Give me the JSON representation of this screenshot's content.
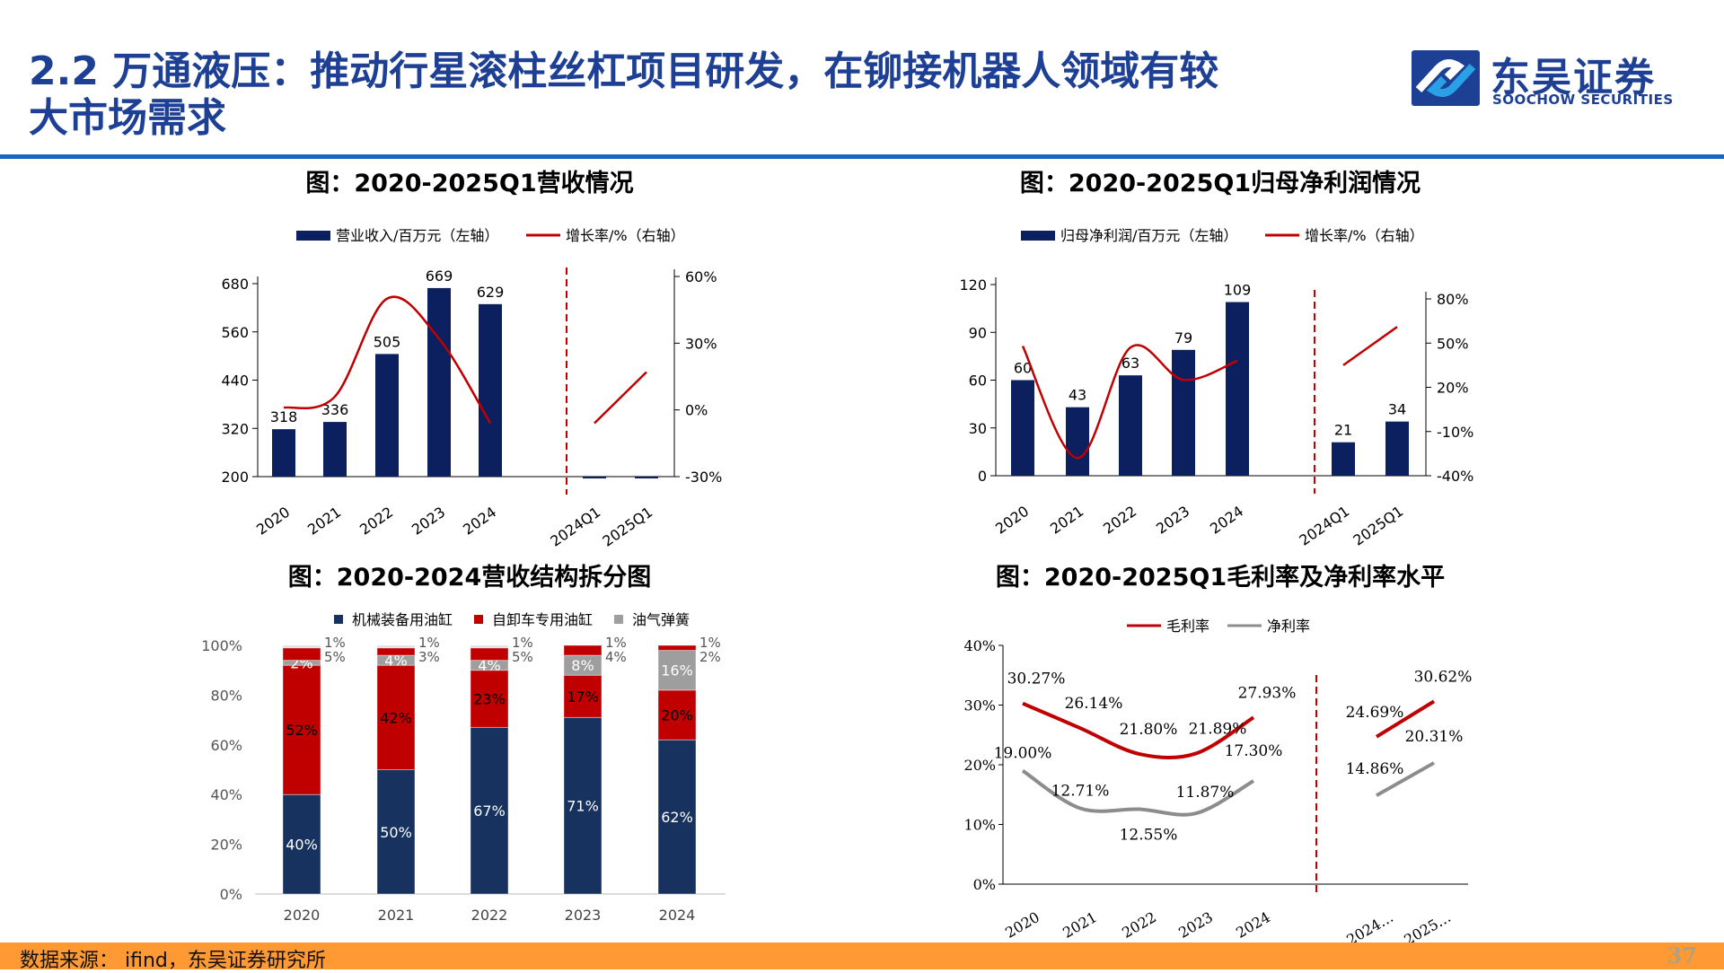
{
  "header": {
    "title_line1": "2.2 万通液压：推动行星滚柱丝杠项目研发，在铆接机器人领域有较",
    "title_line2": "大市场需求",
    "logo_cn": "东吴证券",
    "logo_en": "SOOCHOW SECURITIES",
    "brand_color": "#1d3f94",
    "rule_color": "#1a66c2"
  },
  "footer": {
    "source": "数据来源： ifind，东吴证券研究所",
    "page": "37",
    "color": "#ff9933"
  },
  "chart_data": [
    {
      "type": "bar+line",
      "title": "图：2020-2025Q1营收情况",
      "categories": [
        "2020",
        "2021",
        "2022",
        "2023",
        "2024",
        "2024Q1",
        "2025Q1"
      ],
      "series": [
        {
          "name": "营业收入/百万元（左轴）",
          "type": "bar",
          "color": "#0c1f5e",
          "values": [
            318,
            336,
            505,
            669,
            629,
            null,
            null
          ],
          "labels": [
            "318",
            "336",
            "505",
            "669",
            "629",
            "",
            ""
          ]
        },
        {
          "name": "增长率/%（右轴）",
          "type": "line",
          "color": "#c00000",
          "values": [
            1,
            6,
            50,
            32,
            -6,
            -6,
            17
          ]
        }
      ],
      "ylim_left": [
        200,
        680
      ],
      "yticks_left": [
        200,
        320,
        440,
        560,
        680
      ],
      "ylim_right": [
        -30,
        60
      ],
      "yticks_right": [
        "-30%",
        "0%",
        "30%",
        "60%"
      ],
      "divider_after": "2024"
    },
    {
      "type": "bar+line",
      "title": "图：2020-2025Q1归母净利润情况",
      "categories": [
        "2020",
        "2021",
        "2022",
        "2023",
        "2024",
        "2024Q1",
        "2025Q1"
      ],
      "series": [
        {
          "name": "归母净利润/百万元（左轴）",
          "type": "bar",
          "color": "#0c1f5e",
          "values": [
            60,
            43,
            63,
            79,
            109,
            21,
            34
          ],
          "labels": [
            "60",
            "43",
            "63",
            "79",
            "109",
            "21",
            "34"
          ]
        },
        {
          "name": "增长率/%（右轴）",
          "type": "line",
          "color": "#c00000",
          "values": [
            48,
            -28,
            47,
            25,
            38,
            35,
            61
          ]
        }
      ],
      "ylim_left": [
        0,
        120
      ],
      "yticks_left": [
        0,
        30,
        60,
        90,
        120
      ],
      "ylim_right": [
        -40,
        80
      ],
      "yticks_right": [
        "-40%",
        "-10%",
        "20%",
        "50%",
        "80%"
      ],
      "divider_after": "2024"
    },
    {
      "type": "stacked_bar",
      "title": "图：2020-2024营收结构拆分图",
      "categories": [
        "2020",
        "2021",
        "2022",
        "2023",
        "2024"
      ],
      "series": [
        {
          "name": "机械装备用油缸",
          "color": "#17325e",
          "values": [
            40,
            50,
            67,
            71,
            62
          ]
        },
        {
          "name": "自卸车专用油缸",
          "color": "#c00000",
          "values": [
            52,
            42,
            23,
            17,
            20
          ]
        },
        {
          "name": "油气弹簧",
          "color": "#9e9e9e",
          "values": [
            2,
            4,
            4,
            8,
            16
          ]
        },
        {
          "color": "#c00000",
          "values": [
            5,
            3,
            5,
            4,
            2
          ]
        },
        {
          "color": "#e0e0e0",
          "values": [
            1,
            1,
            1,
            1,
            1
          ]
        }
      ],
      "ylim": [
        0,
        100
      ],
      "yticks": [
        "0%",
        "20%",
        "40%",
        "60%",
        "80%",
        "100%"
      ]
    },
    {
      "type": "line",
      "title": "图：2020-2025Q1毛利率及净利率水平",
      "categories": [
        "2020",
        "2021",
        "2022",
        "2023",
        "2024",
        "2024…",
        "2025…"
      ],
      "series": [
        {
          "name": "毛利率",
          "color": "#c00000",
          "values": [
            30.27,
            26.14,
            21.8,
            21.89,
            27.93,
            24.69,
            30.62
          ],
          "labels": [
            "30.27%",
            "26.14%",
            "21.80%",
            "21.89%",
            "27.93%",
            "24.69%",
            "30.62%"
          ]
        },
        {
          "name": "净利率",
          "color": "#8c8c8c",
          "values": [
            19.0,
            12.71,
            12.55,
            11.87,
            17.3,
            14.86,
            20.31
          ],
          "labels": [
            "19.00%",
            "12.71%",
            "12.55%",
            "11.87%",
            "17.30%",
            "14.86%",
            "20.31%"
          ]
        }
      ],
      "ylim": [
        0,
        40
      ],
      "yticks": [
        "0%",
        "10%",
        "20%",
        "30%",
        "40%"
      ],
      "divider_after": "2024"
    }
  ]
}
